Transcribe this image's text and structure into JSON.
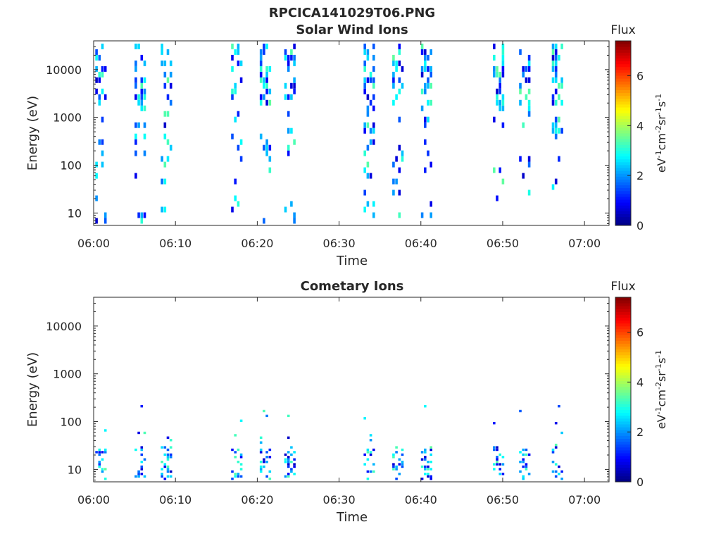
{
  "figure_title": "RPCICA141029T06.PNG",
  "colorbar": {
    "title": "Flux",
    "label_parts": [
      "eV",
      "-1",
      "cm",
      "-2",
      "sr",
      "-1",
      "s",
      "-1"
    ],
    "ticks": [
      0,
      2,
      4,
      6
    ],
    "range": [
      0,
      7.4
    ],
    "colormap": "jet"
  },
  "colors": {
    "axis": "#262626",
    "background": "#ffffff"
  },
  "chart_data": [
    {
      "type": "heatmap",
      "title": "Solar Wind Ions",
      "xlabel": "Time",
      "ylabel": "Energy (eV)",
      "x_ticks": [
        "06:00",
        "06:10",
        "06:20",
        "06:30",
        "06:40",
        "06:50",
        "07:00"
      ],
      "y_ticks": [
        "10",
        "100",
        "1000",
        "10000"
      ],
      "y_scale": "log",
      "ylim": [
        5.5,
        40000
      ],
      "xlim_minutes": [
        0,
        63
      ],
      "bursts_start_minutes": [
        0.2,
        5.0,
        8.2,
        16.8,
        20.3,
        23.3,
        33.0,
        36.5,
        40.0,
        48.8,
        52.0,
        56.0
      ],
      "burst_width_minutes": 1.3,
      "energy_range_eV": [
        6,
        35000
      ],
      "flux_range": [
        0.5,
        3.5
      ],
      "description": "Solar wind ion energy-time spectrogram"
    },
    {
      "type": "heatmap",
      "title": "Cometary Ions",
      "xlabel": "Time",
      "ylabel": "Energy (eV)",
      "x_ticks": [
        "06:00",
        "06:10",
        "06:20",
        "06:30",
        "06:40",
        "06:50",
        "07:00"
      ],
      "y_ticks": [
        "10",
        "100",
        "1000",
        "10000"
      ],
      "y_scale": "log",
      "ylim": [
        5.5,
        40000
      ],
      "xlim_minutes": [
        0,
        63
      ],
      "bursts_start_minutes": [
        0.2,
        5.0,
        8.2,
        16.8,
        20.3,
        23.3,
        33.0,
        36.5,
        40.0,
        48.8,
        52.0,
        56.0
      ],
      "burst_width_minutes": 1.3,
      "energy_range_eV": [
        6,
        250
      ],
      "flux_range": [
        0.5,
        3.5
      ],
      "description": "Cometary ion energy-time spectrogram"
    }
  ]
}
